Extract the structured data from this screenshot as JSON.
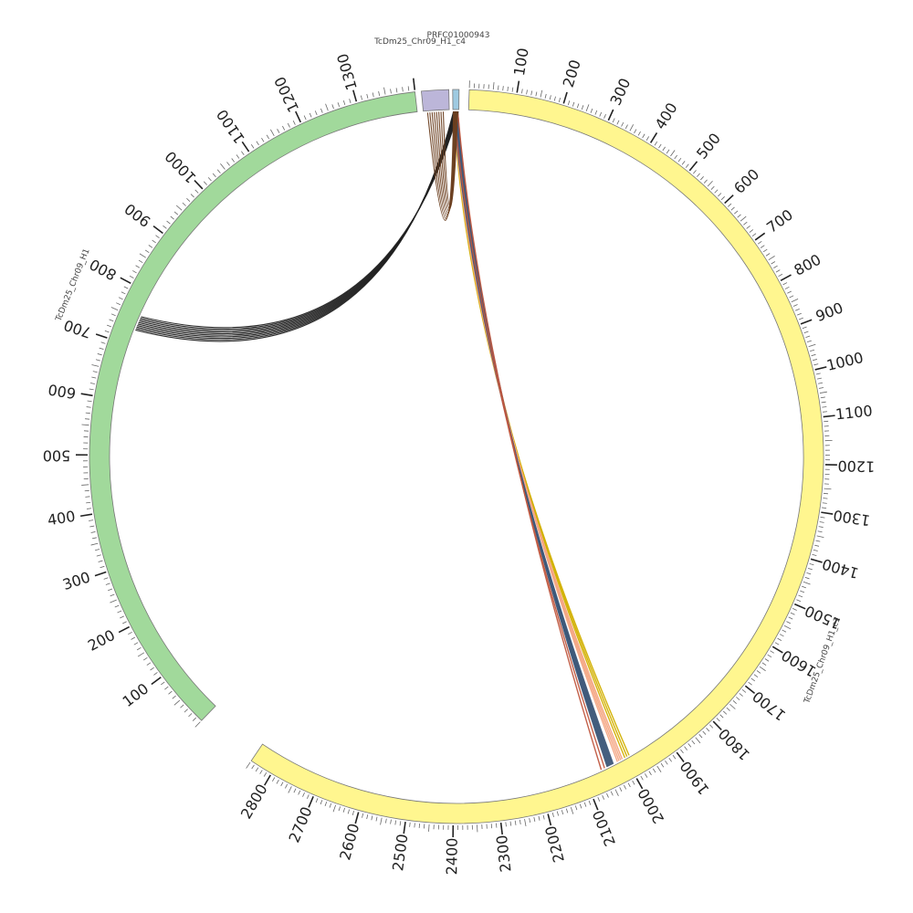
{
  "diagram": {
    "type": "circos",
    "center_label": "",
    "segments": [
      {
        "name": "TcDm25_Chr09_H1_c1",
        "color": "#fff68f",
        "ticks": [
          "100",
          "200",
          "300",
          "400",
          "500",
          "600",
          "700",
          "800",
          "900",
          "1000",
          "1100",
          "1200",
          "1300",
          "1400",
          "1500",
          "1600",
          "1700",
          "1800",
          "1900",
          "2000",
          "2100",
          "2200",
          "2300",
          "2400",
          "2500",
          "2600",
          "2700",
          "2800"
        ]
      },
      {
        "name": "TcDm25_Chr09_H1",
        "color": "#a1d99b",
        "ticks": [
          "100",
          "200",
          "300",
          "400",
          "500",
          "600",
          "700",
          "800",
          "900",
          "1000",
          "1100",
          "1200",
          "1300"
        ]
      },
      {
        "name": "TcDm25_Chr09_H1_c4",
        "color": "#bcb6d9",
        "ticks": []
      },
      {
        "name": "PRFC01000943",
        "color": "#9ecae1",
        "ticks": []
      }
    ],
    "links": [
      {
        "from": "PRFC01000943",
        "to": "TcDm25_Chr09_H1_c1",
        "color": "#d2b000",
        "count": 3
      },
      {
        "from": "PRFC01000943",
        "to": "TcDm25_Chr09_H1_c1",
        "color": "#f4a582",
        "count": 4
      },
      {
        "from": "PRFC01000943",
        "to": "TcDm25_Chr09_H1_c1",
        "color": "#3f5a7a",
        "count": 8
      },
      {
        "from": "PRFC01000943",
        "to": "TcDm25_Chr09_H1_c1",
        "color": "#c0573f",
        "count": 2
      },
      {
        "from": "PRFC01000943",
        "to": "TcDm25_Chr09_H1",
        "color": "#222222",
        "count": 10
      },
      {
        "from": "PRFC01000943",
        "to": "TcDm25_Chr09_H1_c4",
        "color": "#6b3f20",
        "count": 8
      }
    ]
  }
}
